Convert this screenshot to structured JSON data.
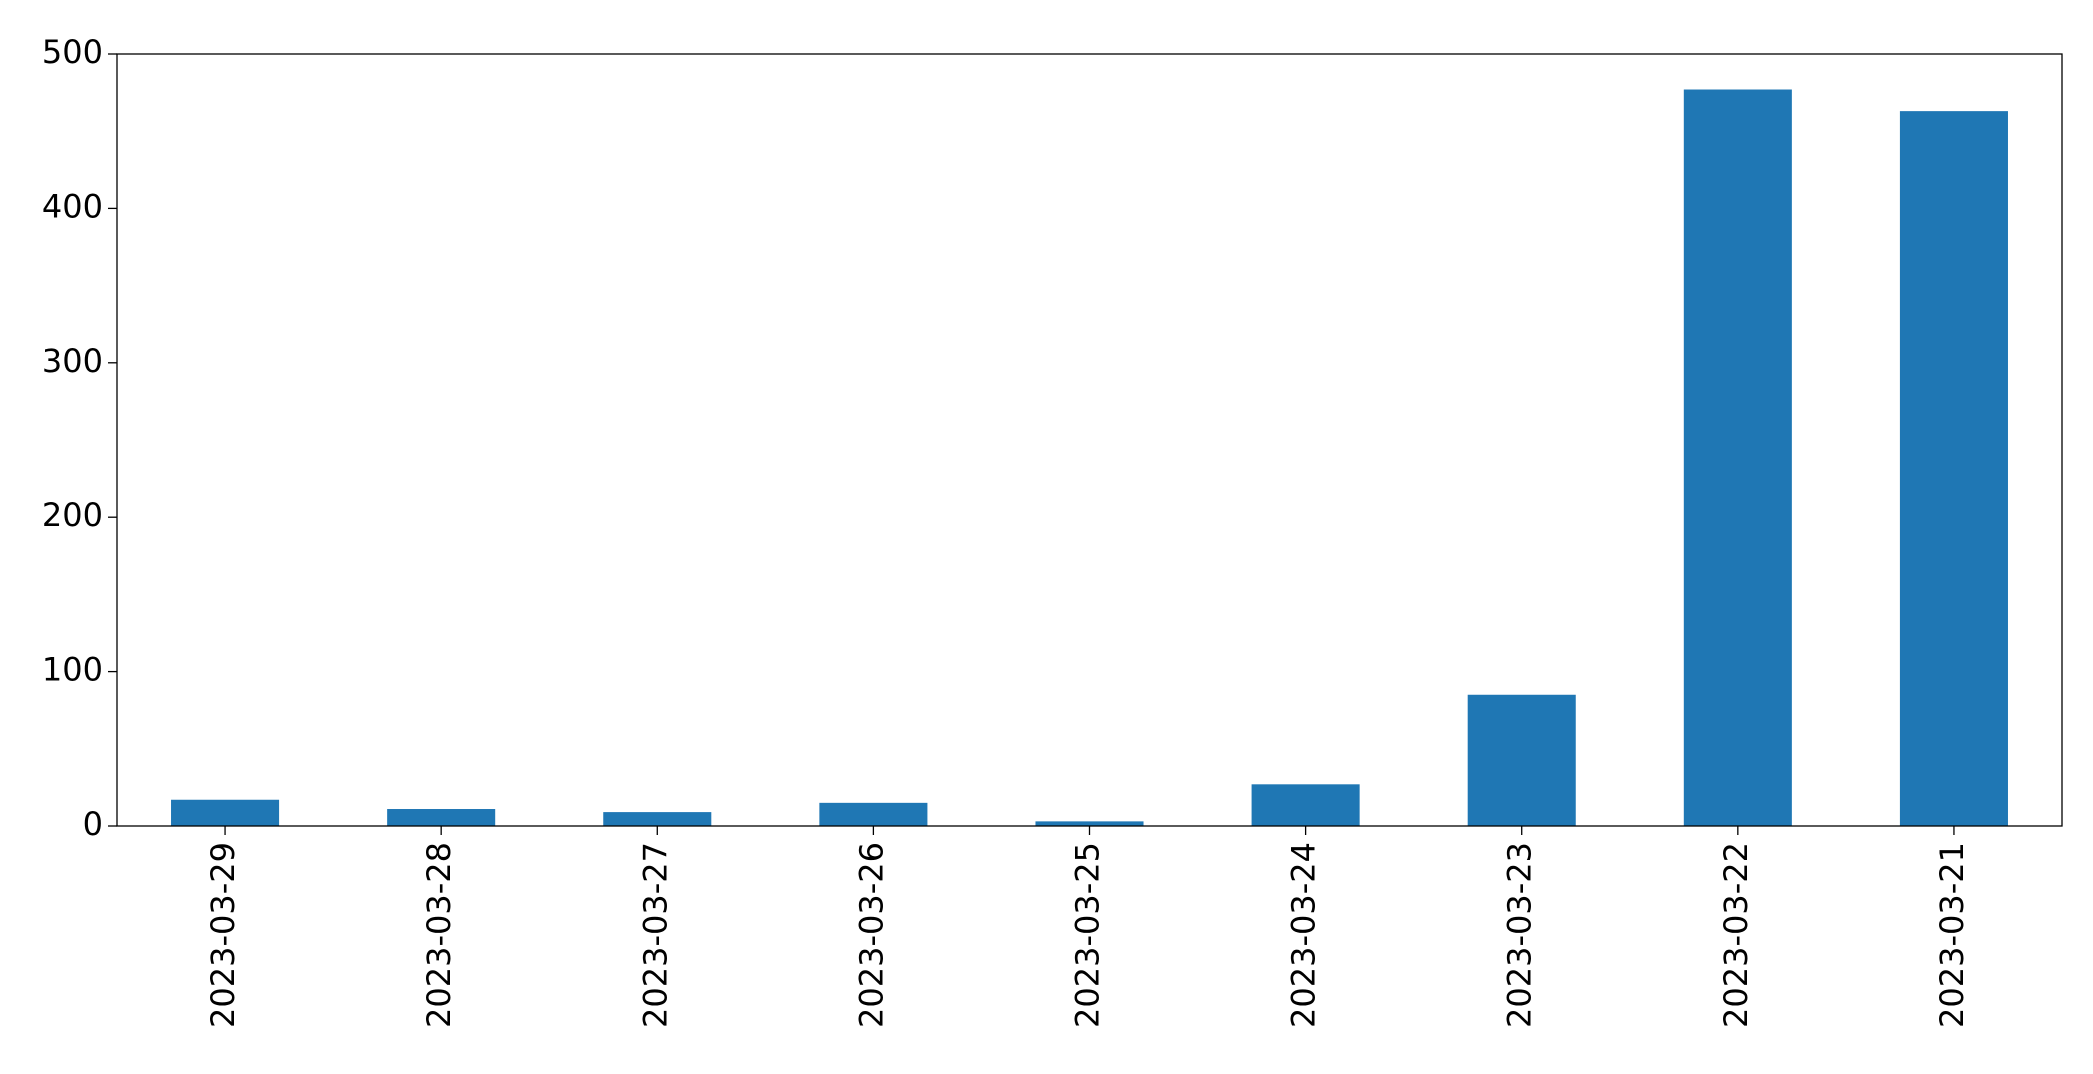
{
  "chart_data": {
    "type": "bar",
    "categories": [
      "2023-03-29",
      "2023-03-28",
      "2023-03-27",
      "2023-03-26",
      "2023-03-25",
      "2023-03-24",
      "2023-03-23",
      "2023-03-22",
      "2023-03-21"
    ],
    "values": [
      17,
      11,
      9,
      15,
      3,
      27,
      85,
      477,
      463
    ],
    "color": "#1f77b4",
    "ylim": [
      0,
      500
    ],
    "yticks": [
      0,
      100,
      200,
      300,
      400,
      500
    ],
    "grid": false
  }
}
